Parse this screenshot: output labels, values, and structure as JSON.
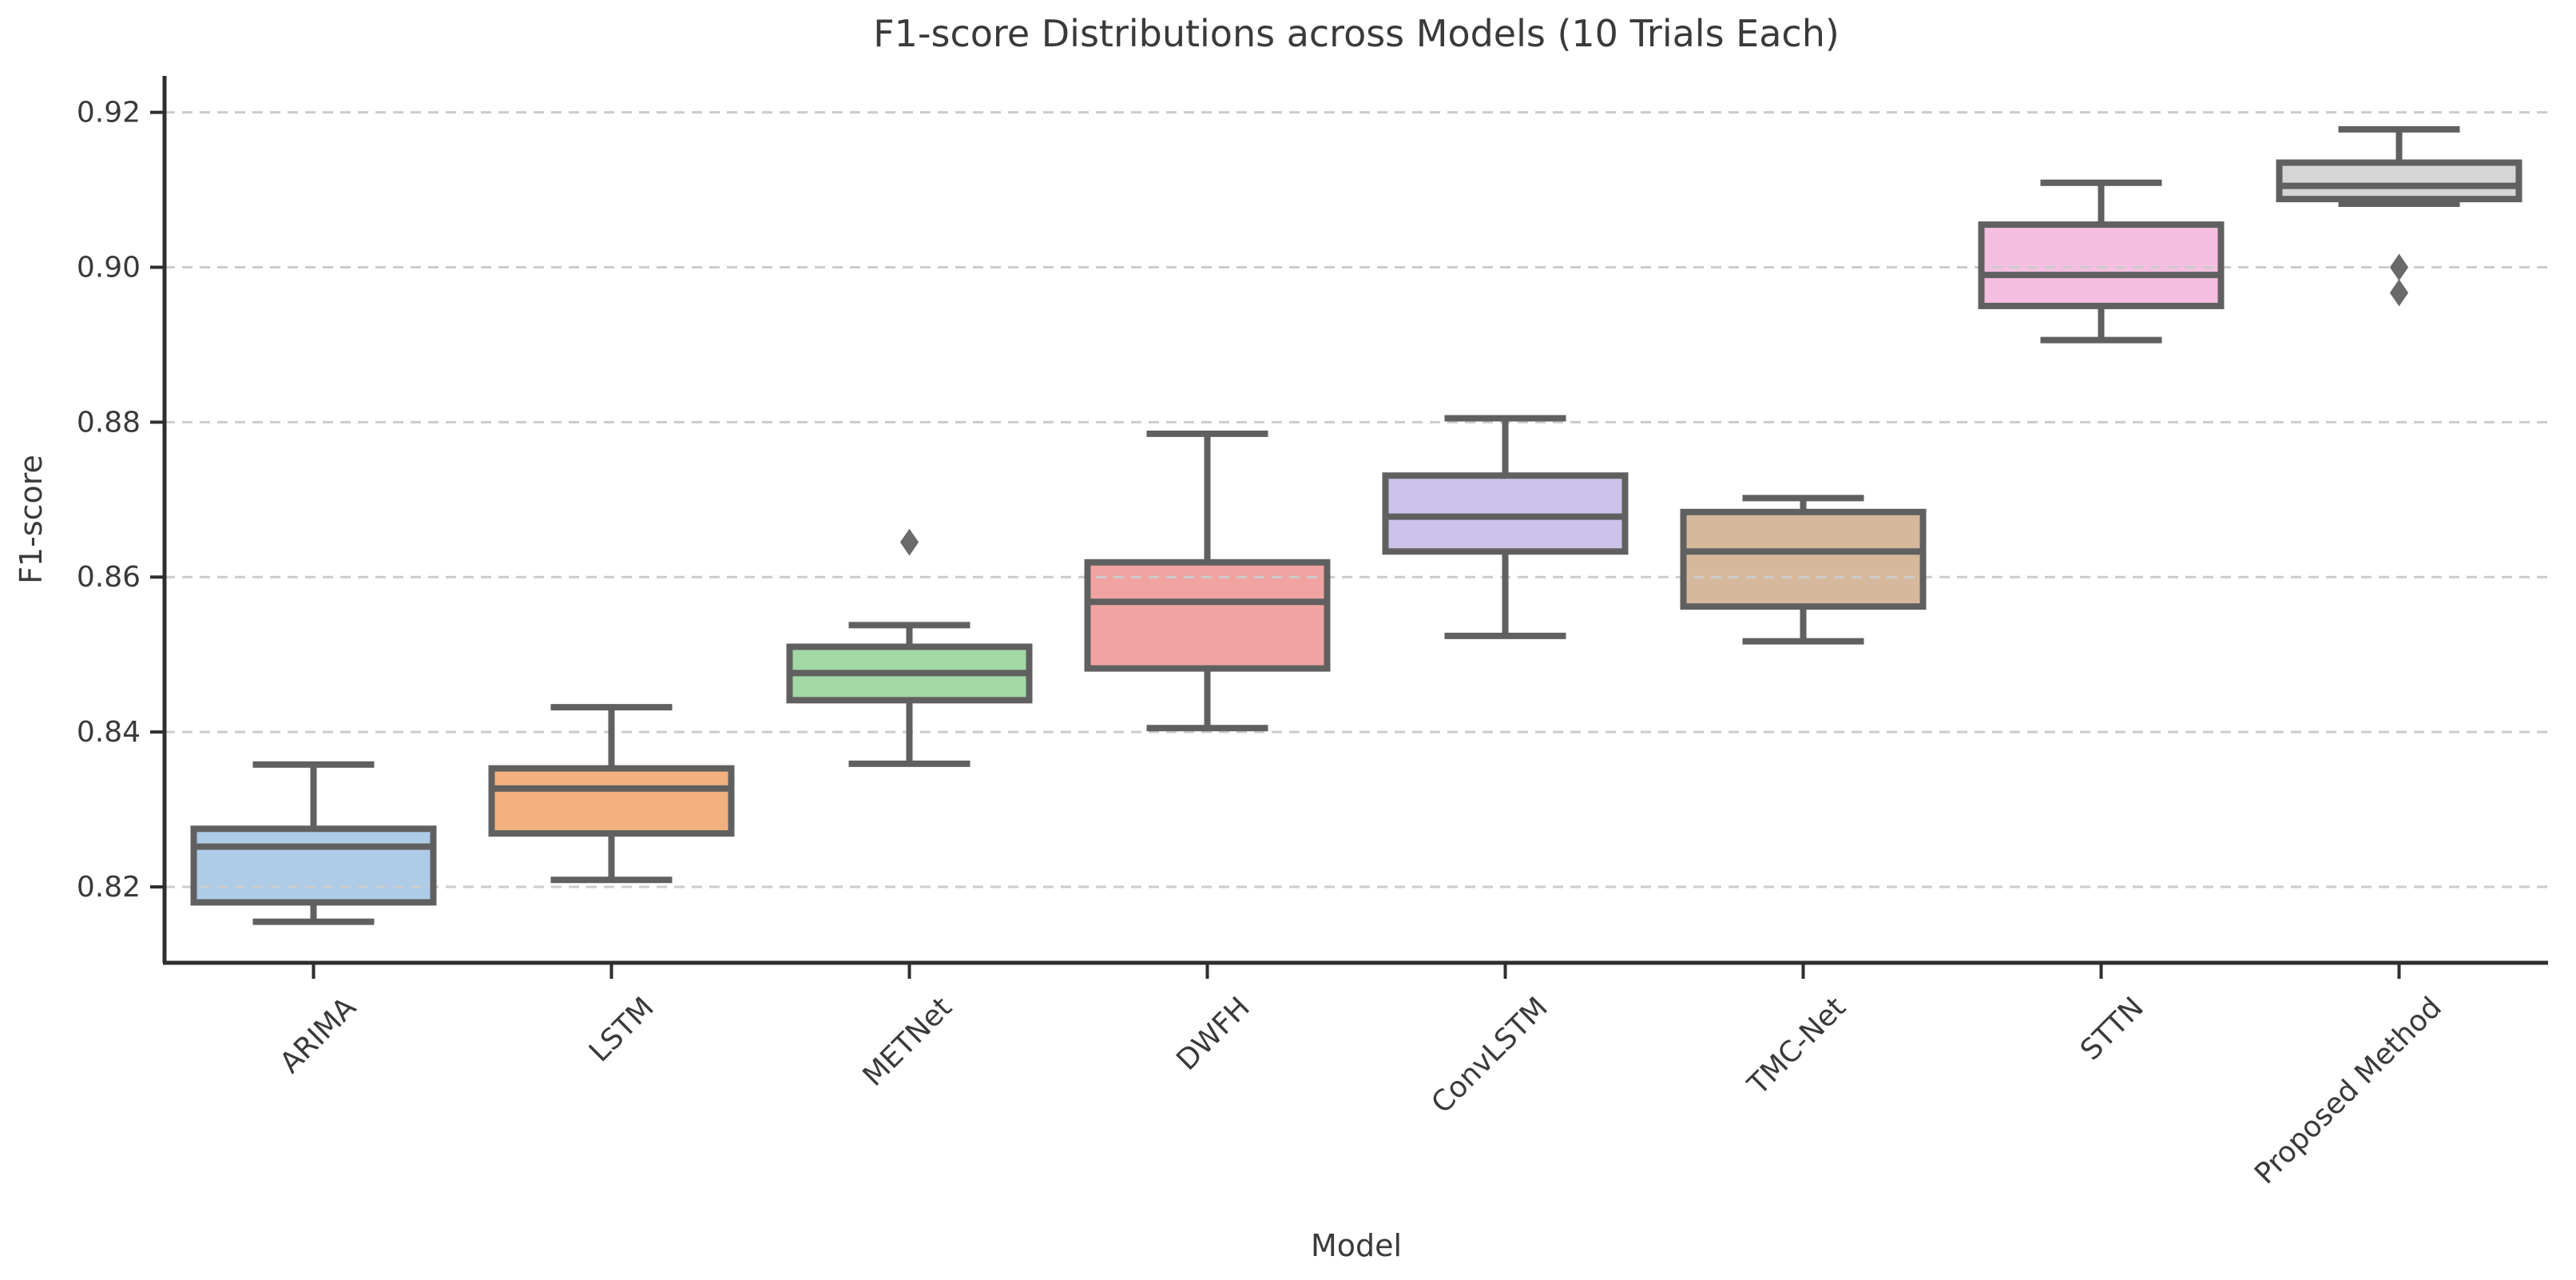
{
  "chart_data": {
    "type": "box",
    "title": "F1-score Distributions across Models (10 Trials Each)",
    "xlabel": "Model",
    "ylabel": "F1-score",
    "categories": [
      "ARIMA",
      "LSTM",
      "METNet",
      "DWFH",
      "ConvLSTM",
      "TMC-Net",
      "STTN",
      "Proposed Method"
    ],
    "yticks": [
      0.82,
      0.84,
      0.86,
      0.88,
      0.9,
      0.92
    ],
    "ylim": [
      0.8102,
      0.9247
    ],
    "grid": "horizontal-dashed",
    "legend": "none",
    "series": [
      {
        "name": "ARIMA",
        "whisker_low": 0.8155,
        "q1": 0.818,
        "median": 0.8252,
        "q3": 0.8275,
        "whisker_high": 0.8358,
        "outliers": [],
        "fill_color": "#aecbe8"
      },
      {
        "name": "LSTM",
        "whisker_low": 0.8209,
        "q1": 0.8269,
        "median": 0.8327,
        "q3": 0.8353,
        "whisker_high": 0.8432,
        "outliers": [],
        "fill_color": "#f2b17e"
      },
      {
        "name": "METNet",
        "whisker_low": 0.8359,
        "q1": 0.8441,
        "median": 0.8476,
        "q3": 0.851,
        "whisker_high": 0.8538,
        "outliers": [
          0.8645
        ],
        "fill_color": "#a2d8a4"
      },
      {
        "name": "DWFH",
        "whisker_low": 0.8405,
        "q1": 0.8482,
        "median": 0.8568,
        "q3": 0.8619,
        "whisker_high": 0.8785,
        "outliers": [],
        "fill_color": "#f0a3a1"
      },
      {
        "name": "ConvLSTM",
        "whisker_low": 0.8524,
        "q1": 0.8633,
        "median": 0.8678,
        "q3": 0.8731,
        "whisker_high": 0.8805,
        "outliers": [],
        "fill_color": "#cdc2ea"
      },
      {
        "name": "TMC-Net",
        "whisker_low": 0.8517,
        "q1": 0.8562,
        "median": 0.8633,
        "q3": 0.8684,
        "whisker_high": 0.8702,
        "outliers": [],
        "fill_color": "#d6b99c"
      },
      {
        "name": "STTN",
        "whisker_low": 0.8906,
        "q1": 0.895,
        "median": 0.899,
        "q3": 0.9055,
        "whisker_high": 0.9109,
        "outliers": [],
        "fill_color": "#f4bfe0"
      },
      {
        "name": "Proposed Method",
        "whisker_low": 0.9082,
        "q1": 0.9088,
        "median": 0.9105,
        "q3": 0.9135,
        "whisker_high": 0.9178,
        "outliers": [
          0.9,
          0.8967
        ],
        "fill_color": "#d5d5d5"
      }
    ],
    "styles": {
      "box_edge_color": "#606060",
      "whisker_color": "#606060",
      "median_color": "#606060",
      "outlier_color": "#6a6a6a",
      "grid_color": "#cccccc",
      "spine_color": "#2e2e2e",
      "tick_color": "#2e2e2e",
      "text_color": "#3a3a3a"
    }
  }
}
